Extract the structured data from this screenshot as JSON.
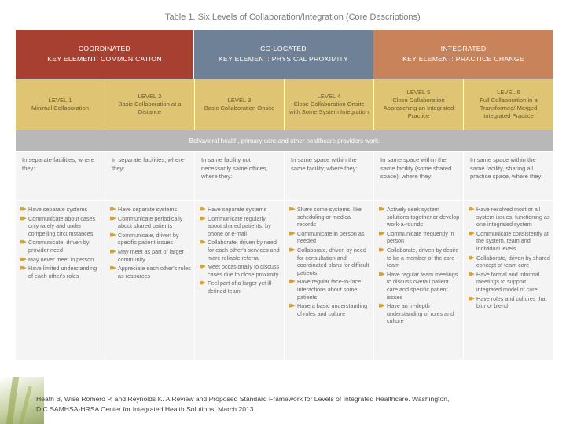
{
  "table": {
    "title": "Table 1. Six Levels of Collaboration/Integration (Core Descriptions)",
    "bands": [
      {
        "line1": "COORDINATED",
        "line2": "KEY ELEMENT: COMMUNICATION"
      },
      {
        "line1": "CO-LOCATED",
        "line2": "KEY ELEMENT: PHYSICAL PROXIMITY"
      },
      {
        "line1": "INTEGRATED",
        "line2": "KEY ELEMENT: PRACTICE CHANGE"
      }
    ],
    "levels": [
      {
        "name": "LEVEL 1",
        "desc": "Minimal Collaboration"
      },
      {
        "name": "LEVEL 2",
        "desc": "Basic Collaboration at a Distance"
      },
      {
        "name": "LEVEL 3",
        "desc": "Basic Collaboration Onsite"
      },
      {
        "name": "LEVEL 4",
        "desc": "Close Collaboration Onsite with Some System Integration"
      },
      {
        "name": "LEVEL 5",
        "desc": "Close Collaboration Approaching an Integrated Practice"
      },
      {
        "name": "LEVEL 6",
        "desc": "Full Collaboration in a Transformed/ Merged Integrated Practice"
      }
    ],
    "subheader": "Behavioral health, primary care and other healthcare providers work:",
    "where": [
      "In separate facilities, where they:",
      "In separate facilities, where they:",
      "In same facility not necessarily same offices, where they:",
      "In same space within the same facility, where they:",
      "In same space within the same facility (some shared space), where they:",
      "In same space within the same facility, sharing all practice space, where they:"
    ],
    "bullets": [
      [
        "Have separate systems",
        "Communicate about cases only rarely and under compelling circumstances",
        "Communicate, driven by provider need",
        "May never meet in person",
        "Have limited understanding of each other's roles"
      ],
      [
        "Have separate systems",
        "Communicate periodically about shared patients",
        "Communicate, driven by specific patient issues",
        "May meet as part of larger community",
        "Appreciate each other's roles as resources"
      ],
      [
        "Have separate systems",
        "Communicate regularly about shared patients, by phone or e-mail",
        "Collaborate, driven by need for each other's services and more reliable referral",
        "Meet occasionally to discuss cases due to close proximity",
        "Feel part of a larger yet ill-defined team"
      ],
      [
        "Share some systems, like scheduling or medical records",
        "Communicate in person as needed",
        "Collaborate, driven by need for consultation and coordinated plans for difficult patients",
        "Have regular face-to-face interactions about some patients",
        "Have a basic understanding of roles and culture"
      ],
      [
        "Actively seek system solutions together or develop work-a-rounds",
        "Communicate frequently in person",
        "Collaborate, driven by desire to be a member of the care team",
        "Have regular team meetings to discuss overall patient care and specific patient issues",
        "Have an in-depth understanding of roles and culture"
      ],
      [
        "Have resolved most or all system issues, functioning as one integrated system",
        "Communicate consistently at the system, team and individual levels",
        "Collaborate, driven by shared concept of team care",
        "Have formal and informal meetings to support integrated model of care",
        "Have roles and cultures that blur or blend"
      ]
    ]
  },
  "colors": {
    "coordinated": "#a84032",
    "colocated": "#6f8196",
    "integrated": "#c8835a",
    "levels_bg": "#dfc474",
    "subheader_bg": "#b8b8b8",
    "bullet_arrow": "#d2a13a"
  },
  "icons": {
    "bullet": "double-arrow-icon"
  },
  "citation": {
    "line1": "Heath B, Wise Romero P, and Reynolds K. A Review and Proposed Standard Framework for Levels of Integrated Healthcare. Washington,",
    "line2": "D.C.SAMHSA-HRSA Center for Integrated Health Solutions. March 2013"
  }
}
